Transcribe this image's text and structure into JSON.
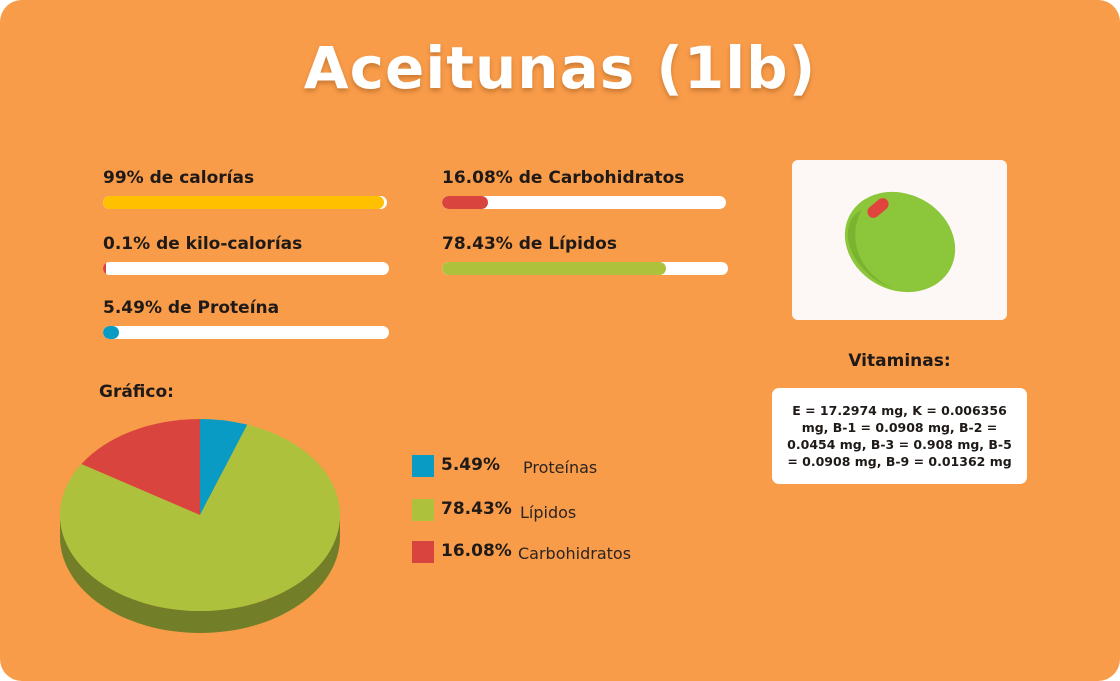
{
  "title": "Aceitunas (1lb)",
  "stats": [
    {
      "label": "99% de calorías",
      "fraction": 0.99,
      "color": "#ffc000"
    },
    {
      "label": "0.1% de kilo-calorías",
      "fraction": 0.001,
      "color": "#d9453e"
    },
    {
      "label": "5.49% de Proteína",
      "fraction": 0.0549,
      "color": "#0a9bc4"
    },
    {
      "label": "16.08% de Carbohidratos",
      "fraction": 0.1608,
      "color": "#d9453e"
    },
    {
      "label": "78.43% de Lípidos",
      "fraction": 0.7843,
      "color": "#aec13c"
    }
  ],
  "image": {
    "icon": "olive-icon"
  },
  "vitamins": {
    "title": "Vitaminas:",
    "text": "E = 17.2974 mg, K = 0.006356 mg, B-1 = 0.0908 mg, B-2 = 0.0454 mg, B-3 = 0.908 mg, B-5 = 0.0908 mg, B-9 = 0.01362 mg"
  },
  "chart_label": "Gráfico:",
  "chart_data": {
    "type": "pie",
    "title": "",
    "series": [
      {
        "name": "Proteínas",
        "value_label": "5.49%",
        "value": 5.49,
        "color": "#0a9bc4"
      },
      {
        "name": "Lípidos",
        "value_label": "78.43%",
        "value": 78.43,
        "color": "#aec13c"
      },
      {
        "name": "Carbohidratos",
        "value_label": "16.08%",
        "value": 16.08,
        "color": "#d9453e"
      }
    ],
    "legend_position": "right"
  }
}
